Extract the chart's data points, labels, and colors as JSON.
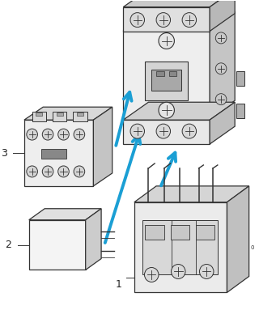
{
  "bg_color": "#ffffff",
  "arrow_color": "#1b9fd4",
  "line_color": "#333333",
  "label_color": "#222222",
  "fill_light": "#f2f2f2",
  "fill_mid": "#e0e0e0",
  "fill_dark": "#c8c8c8",
  "fill_top": "#d8d8d8",
  "fill_right": "#c0c0c0",
  "label1": "1",
  "label2": "2",
  "label3": "3"
}
